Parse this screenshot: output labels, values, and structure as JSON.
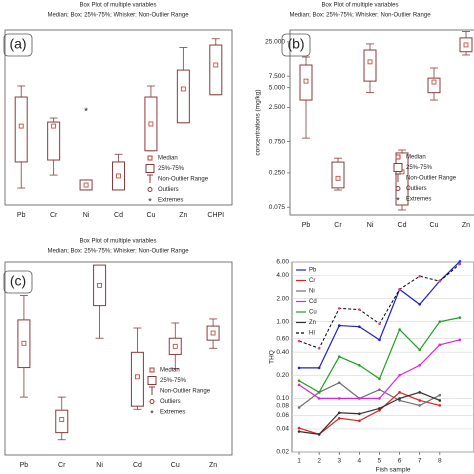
{
  "chart_data": [
    {
      "type": "box",
      "label": "(a)",
      "title": "Box Plot of multiple variables",
      "subtitle": "Median; Box: 25%-75%; Whisker: Non-Outlier Range",
      "categories": [
        "Pb",
        "Cr",
        "Ni",
        "Cd",
        "Cu",
        "Zn",
        "CHPI"
      ],
      "whisker_low": [
        9.7,
        17.1,
        8.6,
        8.6,
        31,
        47,
        63
      ],
      "q1": [
        24.6,
        25.7,
        8.6,
        8.6,
        31,
        47,
        63
      ],
      "median": [
        45.1,
        45.1,
        11.4,
        16.6,
        46.3,
        66.3,
        80
      ],
      "q3": [
        61.7,
        47.4,
        14.3,
        24.6,
        61.7,
        77.1,
        91.4
      ],
      "whisker_high": [
        68,
        49.7,
        14.3,
        29,
        68,
        90,
        95
      ],
      "extremes": [
        null,
        null,
        54.3,
        null,
        null,
        null,
        null
      ],
      "ylim": [
        0,
        100
      ],
      "color": "#8b3a3a",
      "median_color": "#c0392b",
      "legend": [
        "Median",
        "25%-75%",
        "Non-Outlier Range",
        "Outliers",
        "Extremes"
      ]
    },
    {
      "type": "box",
      "label": "(b)",
      "title": "Box Plot of multiple variables",
      "subtitle": "Median; Box: 25%-75%; Whisker: Non-Outlier Range",
      "y_label": "concentrations (mg/kg)",
      "log_scale": true,
      "categories": [
        "Pb",
        "Cr",
        "Ni",
        "Cd",
        "Cu",
        "Zn"
      ],
      "whisker_low": [
        0.85,
        0.137,
        4.2,
        0.068,
        3.24,
        15.8
      ],
      "q1": [
        3.24,
        0.148,
        6.3,
        0.081,
        4.2,
        17.7
      ],
      "median": [
        6.3,
        0.207,
        12.4,
        0.26,
        6.1,
        22.5
      ],
      "q3": [
        11.1,
        0.366,
        18.8,
        0.505,
        7.0,
        28.8
      ],
      "whisker_high": [
        14.7,
        0.42,
        23.3,
        0.56,
        10,
        36
      ],
      "extremes": [
        null,
        null,
        null,
        null,
        null,
        null
      ],
      "ylim": [
        0.057,
        38
      ],
      "yticks": [
        {
          "value": 0.075,
          "label": "0.075"
        },
        {
          "value": 0.25,
          "label": "0.250"
        },
        {
          "value": 0.75,
          "label": "0.750"
        },
        {
          "value": 2.5,
          "label": "2.500"
        },
        {
          "value": 5,
          "label": "5.000"
        },
        {
          "value": 7.5,
          "label": "7.500"
        },
        {
          "value": 25,
          "label": "25.000"
        }
      ],
      "color": "#8b3a3a",
      "median_color": "#c0392b",
      "legend": [
        "Median",
        "25%-75%",
        "Non-Outlier Range",
        "Outliers",
        "Extremes"
      ]
    },
    {
      "type": "box",
      "label": "(c)",
      "title": "Box Plot of multiple variables",
      "subtitle": "Median; Box: 25%-75%; Whisker: Non-Outlier Range",
      "categories": [
        "Pb",
        "Cr",
        "Ni",
        "Cd",
        "Cu",
        "Zn"
      ],
      "whisker_low": [
        30,
        7.9,
        60.5,
        23.7,
        44.7,
        55.3
      ],
      "q1": [
        45.3,
        11.6,
        77.4,
        25.3,
        52.1,
        59.5
      ],
      "median": [
        57.9,
        18.4,
        87.9,
        40.5,
        56.3,
        63.2
      ],
      "q3": [
        70,
        23.2,
        98.4,
        53.2,
        60.5,
        66.8
      ],
      "whisker_high": [
        82.6,
        30,
        97.4,
        65.8,
        68.4,
        70.5
      ],
      "extremes": [
        null,
        null,
        null,
        null,
        null,
        null
      ],
      "ylim": [
        0,
        100
      ],
      "color": "#8b3a3a",
      "median_color": "#c0392b",
      "legend": [
        "Median",
        "25%-75%",
        "Non-Outlier Range",
        "Outliers",
        "Extremes"
      ]
    },
    {
      "type": "line",
      "log_scale": true,
      "x_label": "Fish sample",
      "y_label": "THQ",
      "x": [
        1,
        2,
        3,
        4,
        5,
        6,
        7,
        8,
        9
      ],
      "series": [
        {
          "name": "Pb",
          "color": "#1f1fcf",
          "values": [
            0.25,
            0.25,
            0.89,
            0.86,
            0.58,
            2.64,
            1.68,
            3.4,
            6.1
          ]
        },
        {
          "name": "Cr",
          "color": "#e02020",
          "values": [
            0.041,
            0.034,
            0.055,
            0.051,
            0.07,
            0.12,
            0.094,
            0.081,
            null
          ]
        },
        {
          "name": "Ni",
          "color": "#707070",
          "values": [
            0.076,
            0.12,
            0.16,
            0.1,
            0.13,
            0.094,
            0.081,
            0.11,
            null
          ]
        },
        {
          "name": "Cd",
          "color": "#e020e0",
          "values": [
            0.15,
            0.1,
            0.1,
            0.1,
            0.1,
            0.2,
            0.27,
            0.5,
            0.58
          ]
        },
        {
          "name": "Cu",
          "color": "#20a020",
          "values": [
            0.17,
            0.12,
            0.35,
            0.27,
            0.18,
            0.79,
            0.43,
            1.0,
            1.13
          ]
        },
        {
          "name": "Zn",
          "color": "#303030",
          "values": [
            0.037,
            0.034,
            0.065,
            0.063,
            0.074,
            0.1,
            0.12,
            0.094,
            null
          ]
        },
        {
          "name": "HI",
          "color": "#000000",
          "style": "dashed",
          "values": [
            0.56,
            0.45,
            1.49,
            1.44,
            0.94,
            2.64,
            3.92,
            3.37,
            5.65
          ]
        }
      ],
      "xlim": [
        0.65,
        9.7
      ],
      "xticks": [
        1,
        2,
        3,
        4,
        5,
        6,
        7,
        8
      ],
      "ylim": [
        0.02,
        6
      ],
      "yticks": [
        {
          "value": 0.02,
          "label": "0.02"
        },
        {
          "value": 0.04,
          "label": "0.04"
        },
        {
          "value": 0.06,
          "label": "0.06"
        },
        {
          "value": 0.08,
          "label": "0.08"
        },
        {
          "value": 0.1,
          "label": "0.10"
        },
        {
          "value": 0.2,
          "label": "0.20"
        },
        {
          "value": 0.4,
          "label": "0.40"
        },
        {
          "value": 0.6,
          "label": "0.60"
        },
        {
          "value": 1,
          "label": "1.00"
        },
        {
          "value": 2,
          "label": "2.00"
        },
        {
          "value": 4,
          "label": "4.00"
        },
        {
          "value": 6,
          "label": "6.00"
        }
      ]
    }
  ]
}
